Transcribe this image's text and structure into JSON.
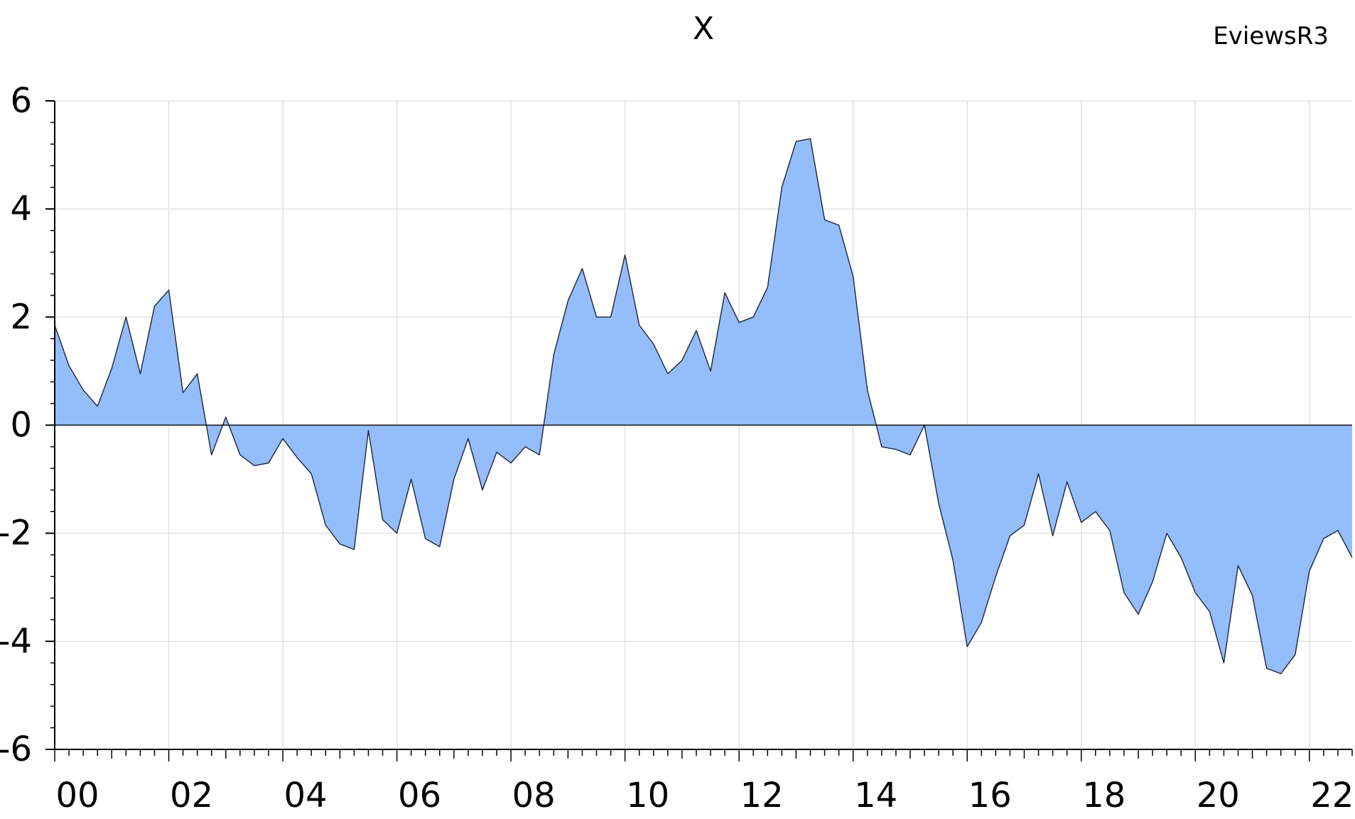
{
  "chart_data": {
    "type": "area",
    "title": "X",
    "watermark": "EviewsR3",
    "xlabel": "",
    "ylabel": "",
    "ylim": [
      -6,
      6
    ],
    "y_ticks": [
      6,
      4,
      2,
      0,
      -2,
      -4,
      -6
    ],
    "y_tick_labels": [
      "6",
      "4",
      "2",
      "0",
      "-2",
      "-4",
      "-6"
    ],
    "x_range": [
      2000.0,
      2022.75
    ],
    "x_ticks": [
      2000,
      2002,
      2004,
      2006,
      2008,
      2010,
      2012,
      2014,
      2016,
      2018,
      2020,
      2022
    ],
    "x_tick_labels": [
      "00",
      "02",
      "04",
      "06",
      "08",
      "10",
      "12",
      "14",
      "16",
      "18",
      "20",
      "22"
    ],
    "frequency": "quarterly",
    "grid": true,
    "fill_color": "#94bdfc",
    "line_color": "#1c2538",
    "series": [
      {
        "start": "2000Q1",
        "values": [
          1.85,
          1.1,
          0.65,
          0.35,
          1.05,
          2.0,
          0.95,
          2.2,
          2.5,
          0.6,
          0.95,
          -0.55,
          0.15,
          -0.55,
          -0.75,
          -0.7,
          -0.25,
          -0.6,
          -0.9,
          -1.85,
          -2.2,
          -2.3,
          -0.1,
          -1.75,
          -2.0,
          -1.0,
          -2.1,
          -2.25,
          -1.0,
          -0.25,
          -1.2,
          -0.5,
          -0.7,
          -0.4,
          -0.55,
          1.3,
          2.3,
          2.9,
          2.0,
          2.0,
          3.15,
          1.85,
          1.5,
          0.95,
          1.2,
          1.75,
          1.0,
          2.45,
          1.9,
          2.0,
          2.55,
          4.4,
          5.25,
          5.3,
          3.8,
          3.7,
          2.75,
          0.65,
          -0.4,
          -0.45,
          -0.55,
          0.0,
          -1.45,
          -2.5,
          -4.1,
          -3.65,
          -2.8,
          -2.05,
          -1.85,
          -0.9,
          -2.05,
          -1.05,
          -1.8,
          -1.6,
          -1.95,
          -3.1,
          -3.5,
          -2.9,
          -2.0,
          -2.45,
          -3.1,
          -3.45,
          -4.4,
          -2.6,
          -3.15,
          -4.5,
          -4.6,
          -4.25,
          -2.7,
          -2.1,
          -1.95,
          -2.45
        ]
      }
    ]
  }
}
